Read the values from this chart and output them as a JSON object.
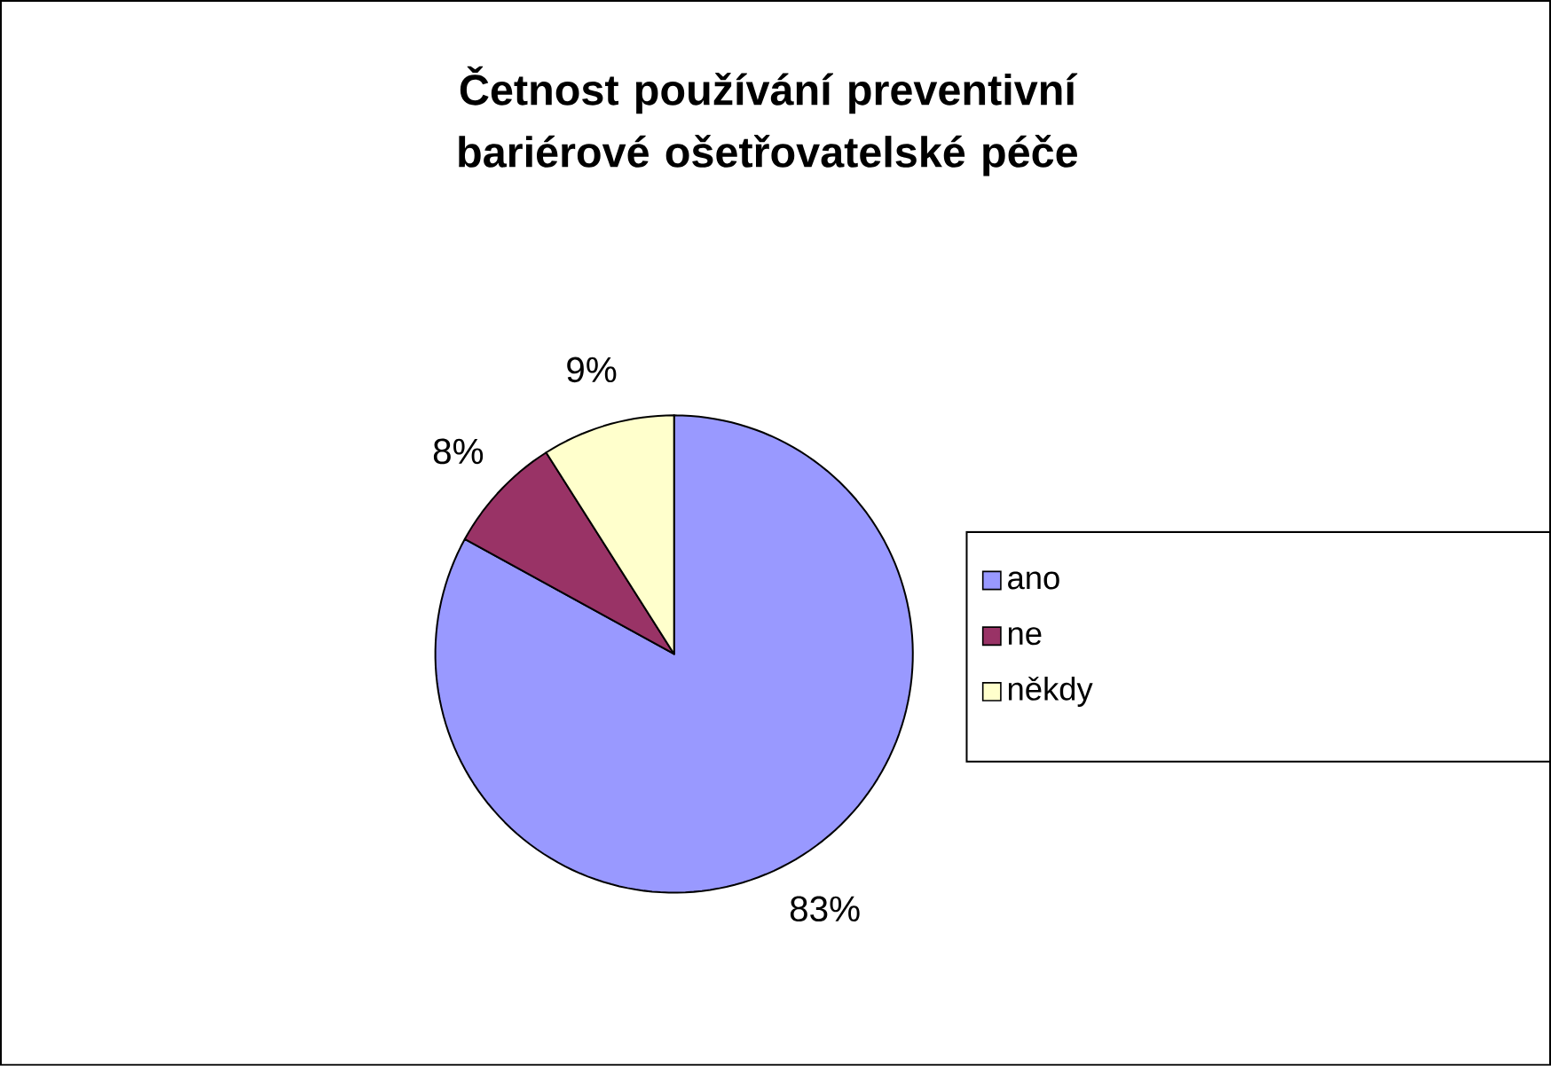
{
  "chart_data": {
    "type": "pie",
    "title": "Četnost používání preventivní bariérové ošetřovatelské péče",
    "categories": [
      "ano",
      "ne",
      "někdy"
    ],
    "values": [
      83,
      8,
      9
    ],
    "value_labels": [
      "83%",
      "8%",
      "9%"
    ],
    "colors": [
      "#9999ff",
      "#993366",
      "#ffffcc"
    ],
    "legend": "right"
  }
}
